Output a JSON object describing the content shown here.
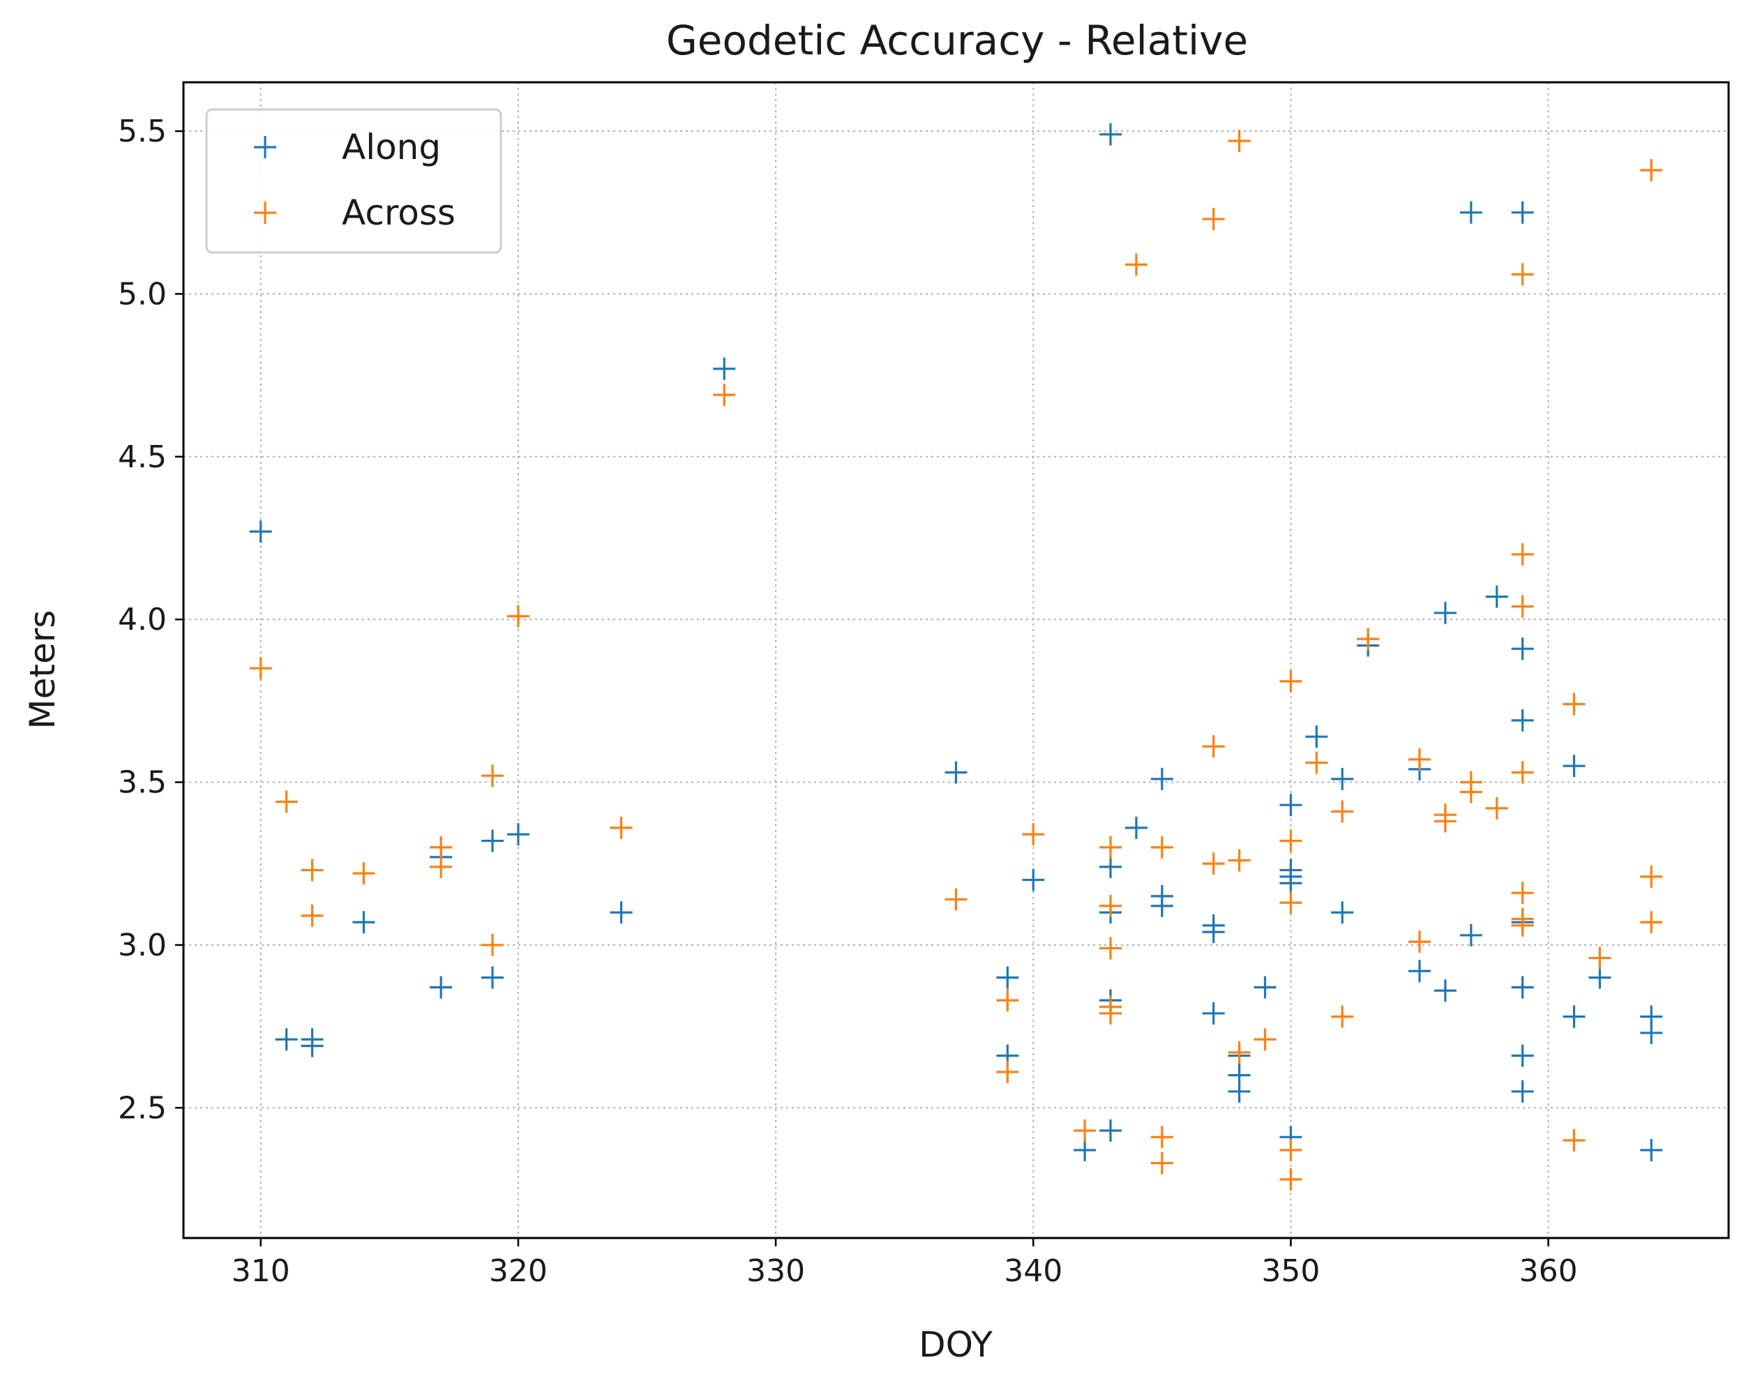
{
  "chart_data": {
    "type": "scatter",
    "title": "Geodetic Accuracy - Relative",
    "xlabel": "DOY",
    "ylabel": "Meters",
    "xlim": [
      307,
      367
    ],
    "ylim": [
      2.1,
      5.65
    ],
    "xticks": [
      310,
      320,
      330,
      340,
      350,
      360
    ],
    "xtick_labels": [
      "310",
      "320",
      "330",
      "340",
      "350",
      "360"
    ],
    "yticks": [
      2.5,
      3.0,
      3.5,
      4.0,
      4.5,
      5.0,
      5.5
    ],
    "ytick_labels": [
      "2.5",
      "3.0",
      "3.5",
      "4.0",
      "4.5",
      "5.0",
      "5.5"
    ],
    "grid": true,
    "legend_position": "top-left",
    "marker": "plus",
    "series": [
      {
        "name": "Along",
        "color": "#1f77b4",
        "points": [
          [
            310,
            4.27
          ],
          [
            311,
            2.71
          ],
          [
            312,
            2.71
          ],
          [
            312,
            2.69
          ],
          [
            314,
            3.07
          ],
          [
            317,
            3.27
          ],
          [
            317,
            2.87
          ],
          [
            319,
            3.32
          ],
          [
            319,
            2.9
          ],
          [
            320,
            3.34
          ],
          [
            324,
            3.1
          ],
          [
            328,
            4.77
          ],
          [
            337,
            3.53
          ],
          [
            339,
            2.9
          ],
          [
            339,
            2.66
          ],
          [
            340,
            3.2
          ],
          [
            342,
            2.37
          ],
          [
            343,
            5.49
          ],
          [
            343,
            3.24
          ],
          [
            343,
            3.1
          ],
          [
            343,
            2.83
          ],
          [
            343,
            2.43
          ],
          [
            344,
            3.36
          ],
          [
            345,
            3.51
          ],
          [
            345,
            3.15
          ],
          [
            345,
            3.12
          ],
          [
            347,
            3.06
          ],
          [
            347,
            3.04
          ],
          [
            347,
            2.79
          ],
          [
            348,
            2.66
          ],
          [
            348,
            2.6
          ],
          [
            348,
            2.55
          ],
          [
            349,
            2.87
          ],
          [
            350,
            3.43
          ],
          [
            350,
            3.23
          ],
          [
            350,
            3.21
          ],
          [
            350,
            3.19
          ],
          [
            350,
            2.41
          ],
          [
            351,
            3.64
          ],
          [
            352,
            3.51
          ],
          [
            352,
            3.1
          ],
          [
            353,
            3.92
          ],
          [
            355,
            3.54
          ],
          [
            355,
            2.92
          ],
          [
            356,
            4.02
          ],
          [
            356,
            2.86
          ],
          [
            357,
            5.25
          ],
          [
            357,
            3.03
          ],
          [
            358,
            4.07
          ],
          [
            359,
            5.25
          ],
          [
            359,
            3.91
          ],
          [
            359,
            3.69
          ],
          [
            359,
            3.07
          ],
          [
            359,
            2.87
          ],
          [
            359,
            2.66
          ],
          [
            359,
            2.55
          ],
          [
            361,
            3.55
          ],
          [
            361,
            2.78
          ],
          [
            362,
            2.9
          ],
          [
            364,
            2.78
          ],
          [
            364,
            2.73
          ],
          [
            364,
            2.37
          ]
        ]
      },
      {
        "name": "Across",
        "color": "#ff7f0e",
        "points": [
          [
            310,
            3.85
          ],
          [
            311,
            3.44
          ],
          [
            312,
            3.23
          ],
          [
            312,
            3.09
          ],
          [
            314,
            3.22
          ],
          [
            317,
            3.3
          ],
          [
            317,
            3.24
          ],
          [
            319,
            3.52
          ],
          [
            319,
            3.0
          ],
          [
            320,
            4.01
          ],
          [
            324,
            3.36
          ],
          [
            328,
            4.69
          ],
          [
            337,
            3.14
          ],
          [
            339,
            2.83
          ],
          [
            339,
            2.61
          ],
          [
            340,
            3.34
          ],
          [
            342,
            2.43
          ],
          [
            343,
            3.3
          ],
          [
            343,
            3.12
          ],
          [
            343,
            2.99
          ],
          [
            343,
            2.81
          ],
          [
            343,
            2.79
          ],
          [
            344,
            5.09
          ],
          [
            345,
            3.3
          ],
          [
            345,
            2.41
          ],
          [
            345,
            2.33
          ],
          [
            347,
            5.23
          ],
          [
            347,
            3.61
          ],
          [
            347,
            3.25
          ],
          [
            348,
            5.47
          ],
          [
            348,
            3.26
          ],
          [
            348,
            2.67
          ],
          [
            349,
            2.71
          ],
          [
            350,
            3.81
          ],
          [
            350,
            3.32
          ],
          [
            350,
            3.13
          ],
          [
            350,
            2.37
          ],
          [
            350,
            2.28
          ],
          [
            351,
            3.56
          ],
          [
            352,
            3.41
          ],
          [
            352,
            2.78
          ],
          [
            353,
            3.94
          ],
          [
            355,
            3.57
          ],
          [
            355,
            3.01
          ],
          [
            356,
            3.4
          ],
          [
            356,
            3.38
          ],
          [
            357,
            3.5
          ],
          [
            357,
            3.47
          ],
          [
            358,
            3.42
          ],
          [
            359,
            5.06
          ],
          [
            359,
            4.2
          ],
          [
            359,
            4.04
          ],
          [
            359,
            3.53
          ],
          [
            359,
            3.16
          ],
          [
            359,
            3.08
          ],
          [
            359,
            3.06
          ],
          [
            361,
            3.74
          ],
          [
            361,
            2.4
          ],
          [
            362,
            2.96
          ],
          [
            364,
            5.38
          ],
          [
            364,
            3.21
          ],
          [
            364,
            3.07
          ]
        ]
      }
    ]
  }
}
